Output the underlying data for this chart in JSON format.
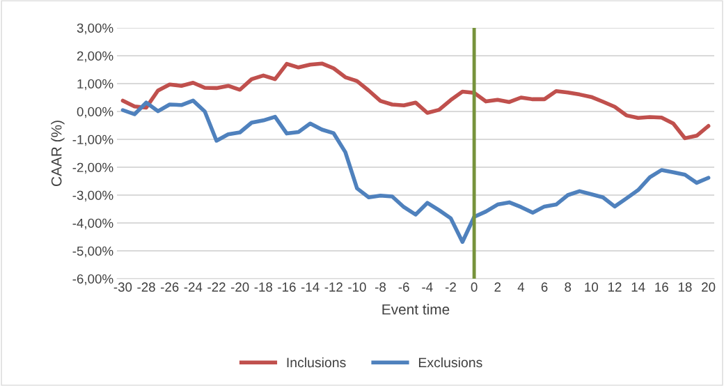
{
  "chart_data": {
    "type": "line",
    "xlabel": "Event time",
    "ylabel": "CAAR (%)",
    "x": [
      -30,
      -29,
      -28,
      -27,
      -26,
      -25,
      -24,
      -23,
      -22,
      -21,
      -20,
      -19,
      -18,
      -17,
      -16,
      -15,
      -14,
      -13,
      -12,
      -11,
      -10,
      -9,
      -8,
      -7,
      -6,
      -5,
      -4,
      -3,
      -2,
      -1,
      0,
      1,
      2,
      3,
      4,
      5,
      6,
      7,
      8,
      9,
      10,
      11,
      12,
      13,
      14,
      15,
      16,
      17,
      18,
      19,
      20
    ],
    "series": [
      {
        "name": "Inclusions",
        "color": "#c0504d",
        "values": [
          0.39,
          0.18,
          0.14,
          0.75,
          0.97,
          0.92,
          1.03,
          0.85,
          0.84,
          0.92,
          0.78,
          1.16,
          1.29,
          1.16,
          1.71,
          1.58,
          1.68,
          1.72,
          1.55,
          1.23,
          1.09,
          0.75,
          0.38,
          0.25,
          0.22,
          0.32,
          -0.05,
          0.06,
          0.41,
          0.71,
          0.67,
          0.36,
          0.42,
          0.34,
          0.5,
          0.44,
          0.44,
          0.73,
          0.68,
          0.61,
          0.52,
          0.35,
          0.17,
          -0.14,
          -0.23,
          -0.2,
          -0.22,
          -0.43,
          -0.96,
          -0.87,
          -0.52
        ]
      },
      {
        "name": "Exclusions",
        "color": "#4f81bd",
        "values": [
          0.05,
          -0.1,
          0.32,
          0.01,
          0.25,
          0.23,
          0.39,
          0.0,
          -1.05,
          -0.82,
          -0.75,
          -0.4,
          -0.32,
          -0.19,
          -0.79,
          -0.74,
          -0.43,
          -0.65,
          -0.78,
          -1.46,
          -2.76,
          -3.08,
          -3.02,
          -3.05,
          -3.43,
          -3.7,
          -3.28,
          -3.54,
          -3.83,
          -4.68,
          -3.78,
          -3.59,
          -3.34,
          -3.26,
          -3.43,
          -3.63,
          -3.41,
          -3.34,
          -3.0,
          -2.86,
          -2.97,
          -3.08,
          -3.41,
          -3.12,
          -2.82,
          -2.36,
          -2.1,
          -2.18,
          -2.27,
          -2.56,
          -2.38
        ]
      }
    ],
    "xlim": [
      -30.5,
      20.5
    ],
    "xticks": [
      -30,
      -28,
      -26,
      -24,
      -22,
      -20,
      -18,
      -16,
      -14,
      -12,
      -10,
      -8,
      -6,
      -4,
      -2,
      0,
      2,
      4,
      6,
      8,
      10,
      12,
      14,
      16,
      18,
      20
    ],
    "ylim": [
      -6,
      3
    ],
    "yticks": [
      {
        "value": 3,
        "label": "3,00%"
      },
      {
        "value": 2,
        "label": "2,00%"
      },
      {
        "value": 1,
        "label": "1,00%"
      },
      {
        "value": 0,
        "label": "0,00%"
      },
      {
        "value": -1,
        "label": "-1,00%"
      },
      {
        "value": -2,
        "label": "-2,00%"
      },
      {
        "value": -3,
        "label": "-3,00%"
      },
      {
        "value": -4,
        "label": "-4,00%"
      },
      {
        "value": -5,
        "label": "-5,00%"
      },
      {
        "value": -6,
        "label": "-6,00%"
      }
    ],
    "ref_lines": [
      {
        "axis": "x",
        "value": 0,
        "color": "#77933c"
      }
    ],
    "grid": "y",
    "legend": "bottom",
    "marker": "none",
    "line_style": "solid"
  }
}
